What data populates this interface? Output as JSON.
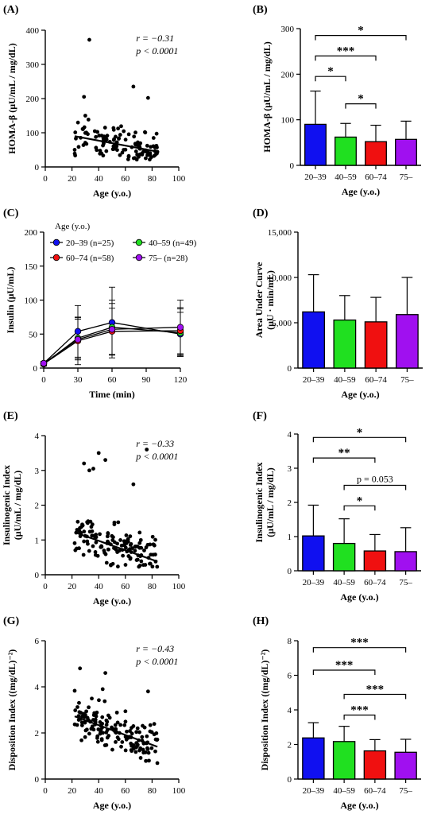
{
  "chart_data": [
    {
      "id": "A",
      "panel_label": "(A)",
      "type": "scatter",
      "xlabel": "Age (y.o.)",
      "ylabel": "HOMA-β (μU/mL / mg/dL)",
      "xlim": [
        0,
        100
      ],
      "ylim": [
        0,
        400
      ],
      "xticks": [
        "0",
        "20",
        "40",
        "60",
        "80",
        "100"
      ],
      "yticks": [
        "0",
        "100",
        "200",
        "300",
        "400"
      ],
      "annotation_r": "r = −0.31",
      "annotation_p": "p < 0.0001",
      "trend": {
        "x": [
          22,
          84
        ],
        "y": [
          90,
          45
        ]
      },
      "point_seed": 11,
      "point_count": 120,
      "outliers_x": [
        33,
        66,
        29,
        77,
        30
      ],
      "outliers_y": [
        372,
        235,
        205,
        202,
        150
      ]
    },
    {
      "id": "B",
      "panel_label": "(B)",
      "type": "bar",
      "xlabel": "Age (y.o.)",
      "ylabel": "HOMA-β (μU/mL / mg/dL)",
      "ylim": [
        0,
        300
      ],
      "yticks": [
        "0",
        "100",
        "200",
        "300"
      ],
      "categories": [
        "20–39",
        "40–59",
        "60–74",
        "75–"
      ],
      "values": [
        90,
        62,
        52,
        57
      ],
      "errors": [
        73,
        30,
        36,
        40
      ],
      "colors": [
        "#1010f0",
        "#20e020",
        "#f01010",
        "#a010f0"
      ],
      "brackets": [
        {
          "from": 0,
          "to": 3,
          "y": 285,
          "label": "*"
        },
        {
          "from": 0,
          "to": 2,
          "y": 240,
          "label": "***"
        },
        {
          "from": 0,
          "to": 1,
          "y": 195,
          "label": "*"
        },
        {
          "from": 1,
          "to": 2,
          "y": 135,
          "label": "*"
        }
      ]
    },
    {
      "id": "C",
      "panel_label": "(C)",
      "type": "line",
      "xlabel": "Time (min)",
      "ylabel": "Insulin (μU/mL)",
      "xlim": [
        0,
        120
      ],
      "ylim": [
        0,
        200
      ],
      "xticks": [
        "0",
        "30",
        "60",
        "90",
        "120"
      ],
      "yticks": [
        "0",
        "50",
        "100",
        "150",
        "200"
      ],
      "legend_title": "Age (y.o.)",
      "x": [
        0,
        30,
        60,
        120
      ],
      "series": [
        {
          "name": "20–39 (n=25)",
          "color": "#1010f0",
          "values": [
            7,
            54,
            67,
            50
          ],
          "errors": [
            3,
            38,
            52,
            32
          ]
        },
        {
          "name": "40–59 (n=49)",
          "color": "#20e020",
          "values": [
            6,
            44,
            60,
            52
          ],
          "errors": [
            3,
            30,
            40,
            35
          ]
        },
        {
          "name": "60–74 (n=58)",
          "color": "#f01010",
          "values": [
            6,
            40,
            54,
            55
          ],
          "errors": [
            3,
            35,
            34,
            34
          ]
        },
        {
          "name": "75– (n=28)",
          "color": "#a010f0",
          "values": [
            7,
            42,
            57,
            60
          ],
          "errors": [
            3,
            30,
            38,
            40
          ]
        }
      ]
    },
    {
      "id": "D",
      "panel_label": "(D)",
      "type": "bar",
      "xlabel": "Age (y.o.)",
      "ylabel_line1": "Area Under Curve",
      "ylabel_line2": "(μU · min/mL)",
      "ylim": [
        0,
        15000
      ],
      "yticks": [
        "0",
        "5,000",
        "10,000",
        "15,000"
      ],
      "categories": [
        "20–39",
        "40–59",
        "60–74",
        "75–"
      ],
      "values": [
        6200,
        5300,
        5100,
        5900
      ],
      "errors": [
        4100,
        2700,
        2700,
        4100
      ],
      "colors": [
        "#1010f0",
        "#20e020",
        "#f01010",
        "#a010f0"
      ],
      "brackets": []
    },
    {
      "id": "E",
      "panel_label": "(E)",
      "type": "scatter",
      "xlabel": "Age (y.o.)",
      "ylabel_line1": "Insulinogenic Index",
      "ylabel_line2": "(μU/mL / mg/dL)",
      "xlim": [
        0,
        100
      ],
      "ylim": [
        0,
        4
      ],
      "xticks": [
        "0",
        "20",
        "40",
        "60",
        "80",
        "100"
      ],
      "yticks": [
        "0",
        "1",
        "2",
        "3",
        "4"
      ],
      "annotation_r": "r = −0.33",
      "annotation_p": "p < 0.0001",
      "trend": {
        "x": [
          22,
          84
        ],
        "y": [
          1.22,
          0.38
        ]
      },
      "point_seed": 23,
      "point_count": 140,
      "outliers_x": [
        40,
        45,
        76,
        29,
        66,
        36,
        33
      ],
      "outliers_y": [
        3.5,
        3.3,
        3.6,
        3.2,
        2.6,
        3.05,
        3.0
      ]
    },
    {
      "id": "F",
      "panel_label": "(F)",
      "type": "bar",
      "xlabel": "Age (y.o.)",
      "ylabel_line1": "Insulinogenic Index",
      "ylabel_line2": "(μU/mL / mg/dL)",
      "ylim": [
        0,
        4
      ],
      "yticks": [
        "0",
        "1",
        "2",
        "3",
        "4"
      ],
      "categories": [
        "20–39",
        "40–59",
        "60–74",
        "75–"
      ],
      "values": [
        1.02,
        0.8,
        0.58,
        0.56
      ],
      "errors": [
        0.9,
        0.72,
        0.48,
        0.7
      ],
      "colors": [
        "#1010f0",
        "#20e020",
        "#f01010",
        "#a010f0"
      ],
      "brackets": [
        {
          "from": 0,
          "to": 3,
          "y": 3.9,
          "label": "*"
        },
        {
          "from": 0,
          "to": 2,
          "y": 3.3,
          "label": "**"
        },
        {
          "from": 1,
          "to": 3,
          "y": 2.5,
          "label": "p = 0.053"
        },
        {
          "from": 1,
          "to": 2,
          "y": 1.9,
          "label": "*"
        }
      ]
    },
    {
      "id": "G",
      "panel_label": "(G)",
      "type": "scatter",
      "xlabel": "Age (y.o.)",
      "ylabel": "Disposition Index ((mg/dL)⁻²)",
      "xlim": [
        0,
        100
      ],
      "ylim": [
        0,
        6
      ],
      "xticks": [
        "0",
        "20",
        "40",
        "60",
        "80",
        "100"
      ],
      "yticks": [
        "0",
        "2",
        "4",
        "6"
      ],
      "annotation_r": "r = −0.43",
      "annotation_p": "p < 0.0001",
      "trend": {
        "x": [
          22,
          84
        ],
        "y": [
          2.72,
          1.4
        ]
      },
      "point_seed": 37,
      "point_count": 150,
      "outliers_x": [
        26,
        45,
        43,
        77
      ],
      "outliers_y": [
        4.8,
        4.6,
        3.9,
        3.8
      ]
    },
    {
      "id": "H",
      "panel_label": "(H)",
      "type": "bar",
      "xlabel": "Age (y.o.)",
      "ylabel": "Disposition Index ((mg/dL)⁻²)",
      "ylim": [
        0,
        8
      ],
      "yticks": [
        "0",
        "2",
        "4",
        "6",
        "8"
      ],
      "categories": [
        "20–39",
        "40–59",
        "60–74",
        "75–"
      ],
      "values": [
        2.38,
        2.17,
        1.63,
        1.55
      ],
      "errors": [
        0.88,
        0.88,
        0.65,
        0.75
      ],
      "colors": [
        "#1010f0",
        "#20e020",
        "#f01010",
        "#a010f0"
      ],
      "brackets": [
        {
          "from": 0,
          "to": 3,
          "y": 7.6,
          "label": "***"
        },
        {
          "from": 0,
          "to": 2,
          "y": 6.3,
          "label": "***"
        },
        {
          "from": 1,
          "to": 3,
          "y": 4.9,
          "label": "***"
        },
        {
          "from": 1,
          "to": 2,
          "y": 3.7,
          "label": "***"
        }
      ]
    }
  ]
}
